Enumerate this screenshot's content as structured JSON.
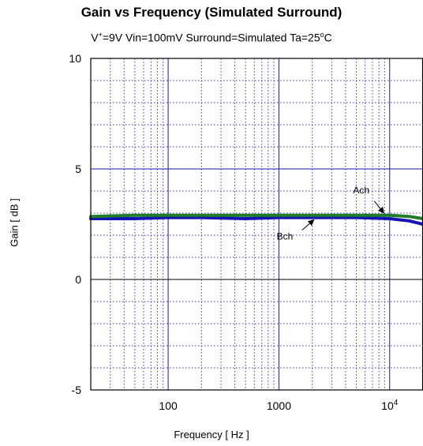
{
  "chart_data": {
    "type": "line",
    "title": "Gain vs Frequency (Simulated Surround)",
    "subtitle": {
      "part1": "V",
      "sup1": "+",
      "part2": "=9V Vin=100mV Surround=Simulated Ta=25",
      "sup2": "o",
      "part3": "C"
    },
    "xlabel": "Frequency [ Hz ]",
    "ylabel": "Gain [ dB ]",
    "x_scale": "log",
    "xlim": [
      20,
      20000
    ],
    "ylim": [
      -5,
      10
    ],
    "grid": true,
    "y_ticks": [
      "10",
      "5",
      "0",
      "-5"
    ],
    "y_tick_values": [
      10,
      5,
      0,
      -5
    ],
    "x_ticks": [
      {
        "value": 100,
        "label": "100"
      },
      {
        "value": 1000,
        "label": "1000"
      },
      {
        "value": 10000,
        "label": "10",
        "sup": "4"
      }
    ],
    "series": [
      {
        "name": "Bch",
        "color": "#1414b4",
        "x": [
          20,
          50,
          100,
          200,
          500,
          1000,
          2000,
          5000,
          10000,
          15000,
          20000
        ],
        "y": [
          2.75,
          2.75,
          2.8,
          2.8,
          2.75,
          2.8,
          2.8,
          2.8,
          2.75,
          2.65,
          2.5
        ]
      },
      {
        "name": "Ach",
        "color": "#1e7d28",
        "x": [
          20,
          50,
          100,
          200,
          500,
          1000,
          2000,
          5000,
          10000,
          15000,
          20000
        ],
        "y": [
          2.85,
          2.9,
          2.9,
          2.9,
          2.9,
          2.9,
          2.9,
          2.9,
          2.9,
          2.85,
          2.75
        ]
      }
    ],
    "annotations": [
      {
        "text": "Ach",
        "points_to": {
          "x": 9000,
          "y": 2.9
        }
      },
      {
        "text": "Bch",
        "points_to": {
          "x": 2100,
          "y": 2.8
        }
      }
    ]
  }
}
